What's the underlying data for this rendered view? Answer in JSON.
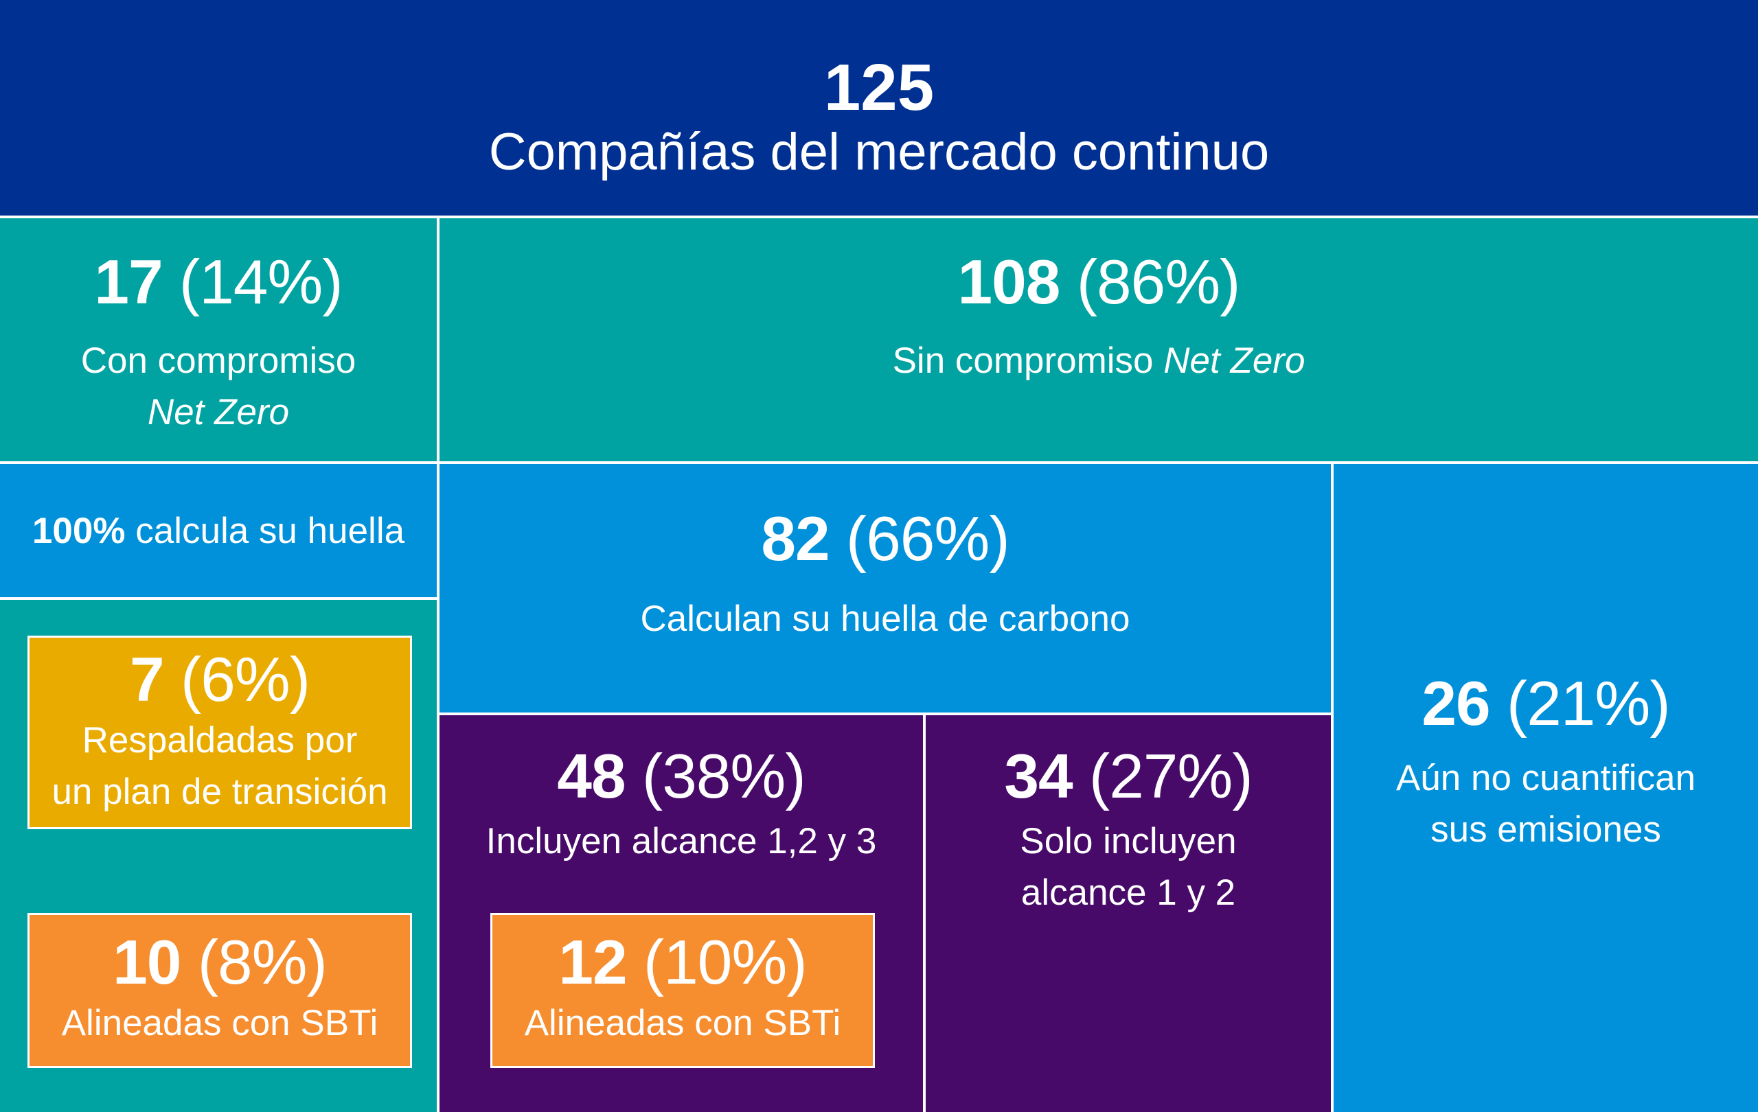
{
  "top": {
    "number": "125",
    "label": "Compañías del mercado continuo"
  },
  "net_zero": {
    "number": "17",
    "percent": "(14%)",
    "label_line1": "Con compromiso",
    "label_italic": "Net Zero"
  },
  "no_net_zero": {
    "number": "108",
    "percent": "(86%)",
    "label": "Sin compromiso ",
    "label_italic": "Net Zero"
  },
  "calc_all": {
    "bold": "100%",
    "text": " calcula su huella"
  },
  "transition_plan": {
    "number": "7",
    "percent": "(6%)",
    "label_line1": "Respaldadas por",
    "label_line2": "un plan de transición"
  },
  "sbti_net_zero": {
    "number": "10",
    "percent": "(8%)",
    "label": "Alineadas con SBTi"
  },
  "calc_footprint": {
    "number": "82",
    "percent": "(66%)",
    "label": "Calculan su huella de carbono"
  },
  "scope_123": {
    "number": "48",
    "percent": "(38%)",
    "label": "Incluyen alcance 1,2 y 3"
  },
  "sbti_scope": {
    "number": "12",
    "percent": "(10%)",
    "label": "Alineadas con SBTi"
  },
  "scope_12": {
    "number": "34",
    "percent": "(27%)",
    "label_line1": "Solo incluyen",
    "label_line2": "alcance 1 y 2"
  },
  "not_quantified": {
    "number": "26",
    "percent": "(21%)",
    "label_line1": "Aún no cuantifican",
    "label_line2": "sus emisiones"
  },
  "colors": {
    "navy": "#003091",
    "teal": "#00a3a1",
    "blue": "#0091da",
    "purple": "#470a68",
    "yellow": "#eaab00",
    "orange": "#f68d2e"
  }
}
